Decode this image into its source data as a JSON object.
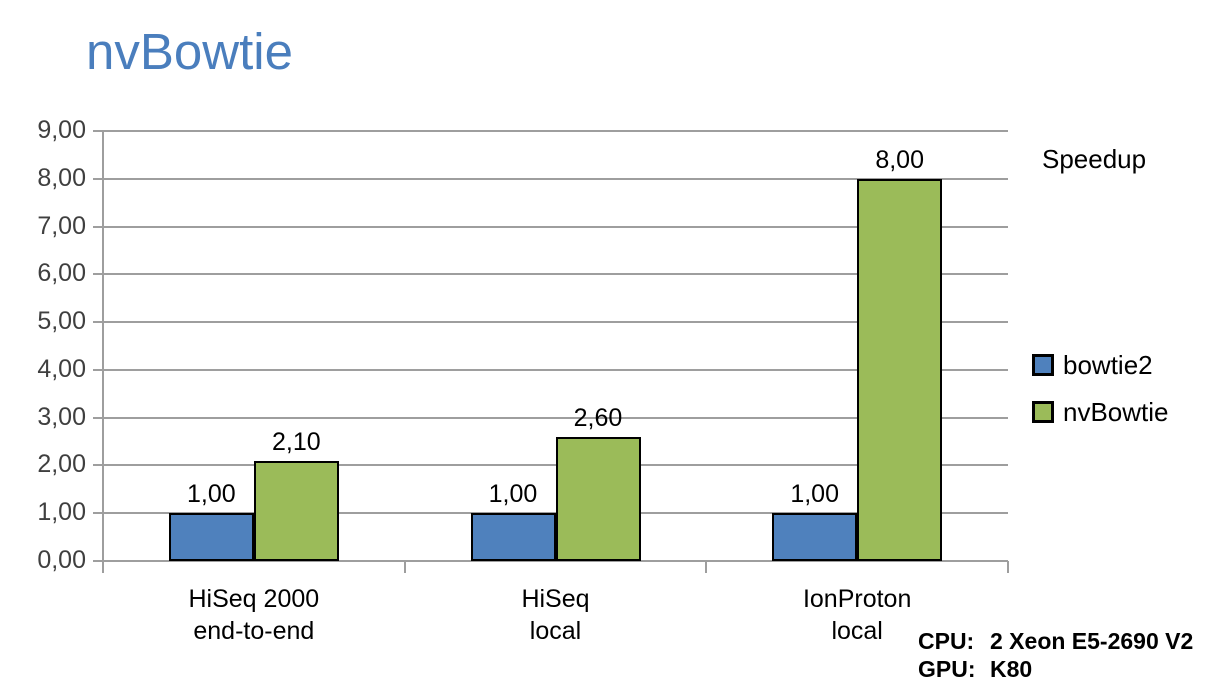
{
  "title": "nvBowtie",
  "colors": {
    "title": "#4a7ebd",
    "bowtie2": "#4f81bd",
    "nvBowtie": "#9bbb59",
    "bar_border": "#000000",
    "gridline": "#9e9e9e",
    "axis_label": "#3f3f3f",
    "text": "#000000"
  },
  "chart_data": {
    "type": "bar",
    "title": "Speedup",
    "categories": [
      "HiSeq 2000\nend-to-end",
      "HiSeq\nlocal",
      "IonProton\nlocal"
    ],
    "series": [
      {
        "name": "bowtie2",
        "color": "#4f81bd",
        "values": [
          1.0,
          1.0,
          1.0
        ],
        "value_labels": [
          "1,00",
          "1,00",
          "1,00"
        ]
      },
      {
        "name": "nvBowtie",
        "color": "#9bbb59",
        "values": [
          2.1,
          2.6,
          8.0
        ],
        "value_labels": [
          "2,10",
          "2,60",
          "8,00"
        ]
      }
    ],
    "ylim": [
      0,
      9
    ],
    "ytick_step": 1,
    "ytick_labels": [
      "0,00",
      "1,00",
      "2,00",
      "3,00",
      "4,00",
      "5,00",
      "6,00",
      "7,00",
      "8,00",
      "9,00"
    ],
    "grid": true,
    "legend_position": "right",
    "decimal_separator": ","
  },
  "legend": {
    "items": [
      {
        "label": "bowtie2",
        "color": "#4f81bd"
      },
      {
        "label": "nvBowtie",
        "color": "#9bbb59"
      }
    ]
  },
  "system_info": {
    "cpu": {
      "label": "CPU:",
      "value": "2 Xeon E5-2690 V2"
    },
    "gpu": {
      "label": "GPU:",
      "value": "K80"
    }
  }
}
